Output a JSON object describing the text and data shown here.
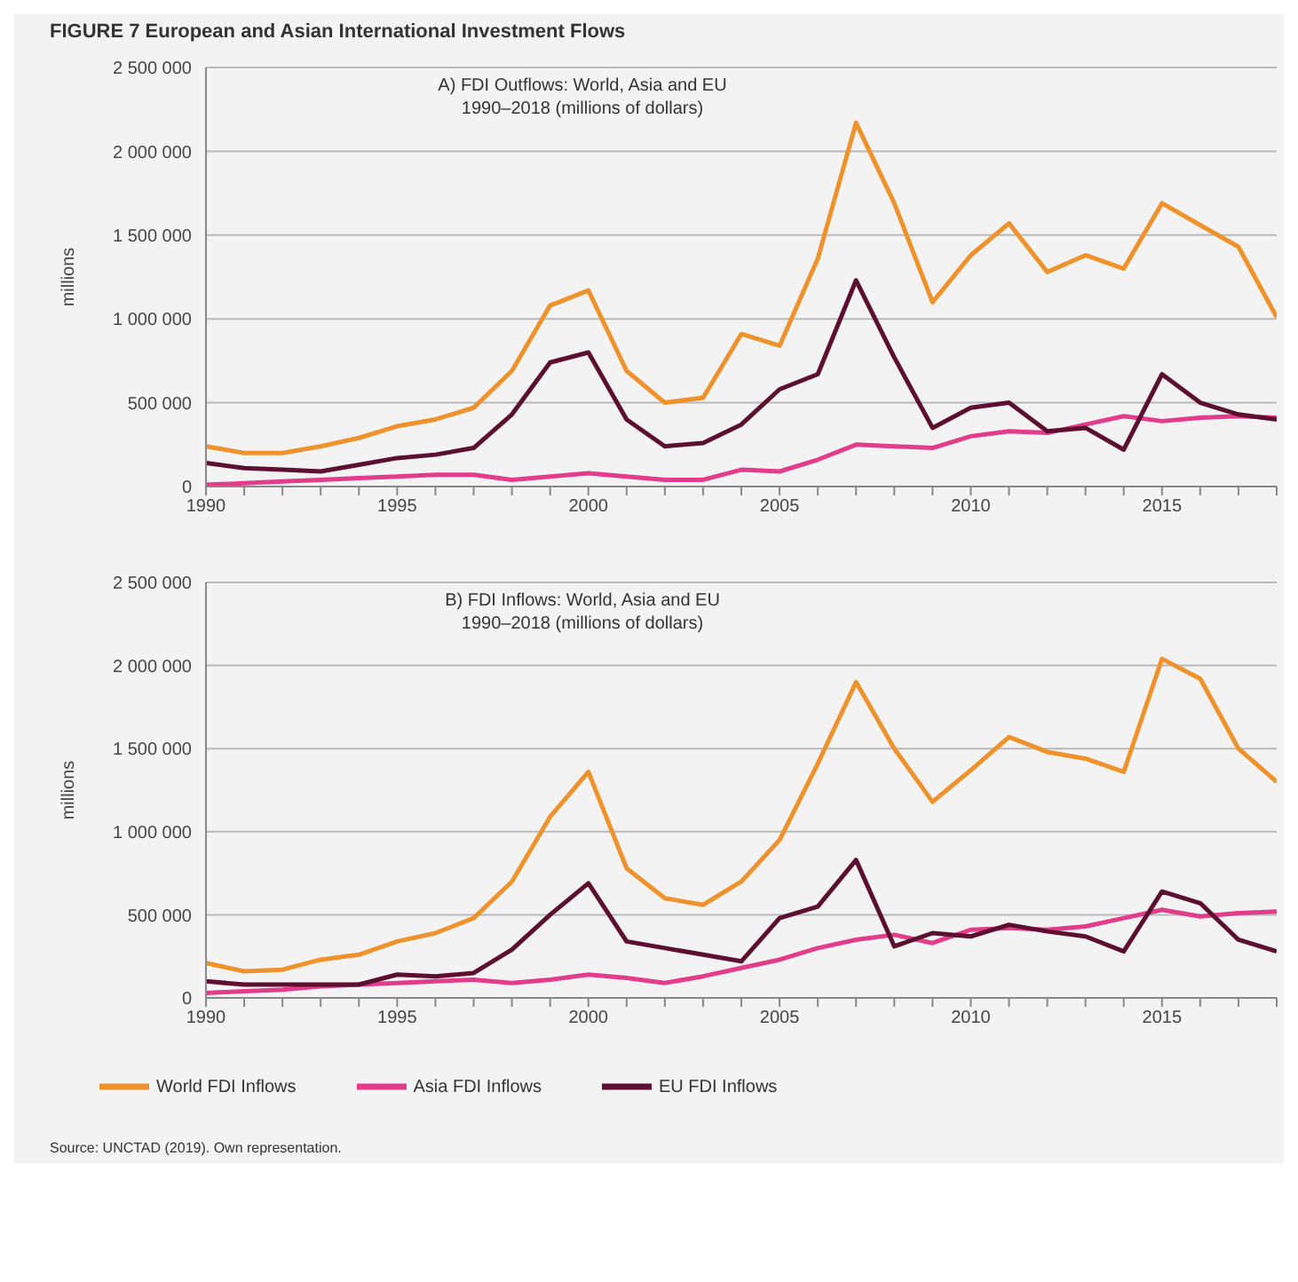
{
  "chart_data": [
    {
      "type": "line",
      "title": "FIGURE 7 European and Asian International Investment Flows",
      "subtitle": "A) FDI Outflows: World, Asia and EU\n1990–2018 (millions of dollars)",
      "ylabel": "millions",
      "x": [
        1990,
        1991,
        1992,
        1993,
        1994,
        1995,
        1996,
        1997,
        1998,
        1999,
        2000,
        2001,
        2002,
        2003,
        2004,
        2005,
        2006,
        2007,
        2008,
        2009,
        2010,
        2011,
        2012,
        2013,
        2014,
        2015,
        2016,
        2017,
        2018
      ],
      "series": [
        {
          "color": "#f0922c",
          "values": [
            240000,
            200000,
            200000,
            240000,
            290000,
            360000,
            400000,
            470000,
            690000,
            1080000,
            1170000,
            690000,
            500000,
            530000,
            910000,
            840000,
            1360000,
            2170000,
            1690000,
            1100000,
            1380000,
            1570000,
            1280000,
            1380000,
            1300000,
            1690000,
            1560000,
            1430000,
            1010000
          ]
        },
        {
          "color": "#e23c8a",
          "values": [
            10000,
            20000,
            30000,
            40000,
            50000,
            60000,
            70000,
            70000,
            40000,
            60000,
            80000,
            60000,
            40000,
            40000,
            100000,
            90000,
            160000,
            250000,
            240000,
            230000,
            300000,
            330000,
            320000,
            370000,
            420000,
            390000,
            410000,
            420000,
            410000
          ]
        },
        {
          "color": "#5c0f2e",
          "values": [
            140000,
            110000,
            100000,
            90000,
            130000,
            170000,
            190000,
            230000,
            430000,
            740000,
            800000,
            400000,
            240000,
            260000,
            370000,
            580000,
            670000,
            1230000,
            770000,
            350000,
            470000,
            500000,
            330000,
            350000,
            220000,
            670000,
            500000,
            430000,
            400000
          ]
        }
      ],
      "xlim": [
        1990,
        2018
      ],
      "xticks": [
        1990,
        {
          "value": 1991,
          "label": null
        },
        {
          "value": 1992,
          "label": null
        },
        {
          "value": 1993,
          "label": null
        },
        {
          "value": 1994,
          "label": null
        },
        1995,
        {
          "value": 1996,
          "label": null
        },
        {
          "value": 1997,
          "label": null
        },
        {
          "value": 1998,
          "label": null
        },
        {
          "value": 1999,
          "label": null
        },
        2000,
        {
          "value": 2001,
          "label": null
        },
        {
          "value": 2002,
          "label": null
        },
        {
          "value": 2003,
          "label": null
        },
        {
          "value": 2004,
          "label": null
        },
        2005,
        {
          "value": 2006,
          "label": null
        },
        {
          "value": 2007,
          "label": null
        },
        {
          "value": 2008,
          "label": null
        },
        {
          "value": 2009,
          "label": null
        },
        2010,
        {
          "value": 2011,
          "label": null
        },
        {
          "value": 2012,
          "label": null
        },
        {
          "value": 2013,
          "label": null
        },
        {
          "value": 2014,
          "label": null
        },
        2015,
        {
          "value": 2016,
          "label": null
        },
        {
          "value": 2017,
          "label": null
        },
        {
          "value": 2018,
          "label": null
        }
      ],
      "ylim": [
        0,
        2500000
      ],
      "yticks": [
        0,
        {
          "value": 500000,
          "label": "500 000"
        },
        {
          "value": 1000000,
          "label": "1 000 000"
        },
        {
          "value": 1500000,
          "label": "1 500 000"
        },
        {
          "value": 2000000,
          "label": "2 000 000"
        },
        {
          "value": 2500000,
          "label": "2 500 000"
        }
      ],
      "grid": "y",
      "legend": false
    },
    {
      "type": "line",
      "subtitle": "B) FDI Inflows: World, Asia and EU\n1990–2018 (millions of dollars)",
      "ylabel": "millions",
      "x": [
        1990,
        1991,
        1992,
        1993,
        1994,
        1995,
        1996,
        1997,
        1998,
        1999,
        2000,
        2001,
        2002,
        2003,
        2004,
        2005,
        2006,
        2007,
        2008,
        2009,
        2010,
        2011,
        2012,
        2013,
        2014,
        2015,
        2016,
        2017,
        2018
      ],
      "series": [
        {
          "name": "World FDI Inflows",
          "color": "#f0922c",
          "values": [
            210000,
            160000,
            170000,
            230000,
            260000,
            340000,
            390000,
            480000,
            700000,
            1090000,
            1360000,
            780000,
            600000,
            560000,
            700000,
            950000,
            1410000,
            1900000,
            1500000,
            1180000,
            1370000,
            1570000,
            1480000,
            1440000,
            1360000,
            2040000,
            1920000,
            1500000,
            1300000
          ]
        },
        {
          "name": "Asia FDI Inflows",
          "color": "#e23c8a",
          "values": [
            30000,
            40000,
            50000,
            70000,
            80000,
            90000,
            100000,
            110000,
            90000,
            110000,
            140000,
            120000,
            90000,
            130000,
            180000,
            230000,
            300000,
            350000,
            380000,
            330000,
            410000,
            420000,
            410000,
            430000,
            480000,
            530000,
            490000,
            510000,
            520000
          ]
        },
        {
          "name": "EU FDI Inflows",
          "color": "#5c0f2e",
          "values": [
            100000,
            80000,
            80000,
            80000,
            80000,
            140000,
            130000,
            150000,
            290000,
            500000,
            690000,
            340000,
            300000,
            260000,
            220000,
            480000,
            550000,
            830000,
            310000,
            390000,
            370000,
            440000,
            400000,
            370000,
            280000,
            640000,
            570000,
            350000,
            280000
          ]
        }
      ],
      "xlim": [
        1990,
        2018
      ],
      "xticks": [
        1990,
        {
          "value": 1991,
          "label": null
        },
        {
          "value": 1992,
          "label": null
        },
        {
          "value": 1993,
          "label": null
        },
        {
          "value": 1994,
          "label": null
        },
        1995,
        {
          "value": 1996,
          "label": null
        },
        {
          "value": 1997,
          "label": null
        },
        {
          "value": 1998,
          "label": null
        },
        {
          "value": 1999,
          "label": null
        },
        2000,
        {
          "value": 2001,
          "label": null
        },
        {
          "value": 2002,
          "label": null
        },
        {
          "value": 2003,
          "label": null
        },
        {
          "value": 2004,
          "label": null
        },
        2005,
        {
          "value": 2006,
          "label": null
        },
        {
          "value": 2007,
          "label": null
        },
        {
          "value": 2008,
          "label": null
        },
        {
          "value": 2009,
          "label": null
        },
        2010,
        {
          "value": 2011,
          "label": null
        },
        {
          "value": 2012,
          "label": null
        },
        {
          "value": 2013,
          "label": null
        },
        {
          "value": 2014,
          "label": null
        },
        2015,
        {
          "value": 2016,
          "label": null
        },
        {
          "value": 2017,
          "label": null
        },
        {
          "value": 2018,
          "label": null
        }
      ],
      "ylim": [
        0,
        2500000
      ],
      "yticks": [
        0,
        {
          "value": 500000,
          "label": "500 000"
        },
        {
          "value": 1000000,
          "label": "1 000 000"
        },
        {
          "value": 1500000,
          "label": "1 500 000"
        },
        {
          "value": 2000000,
          "label": "2 000 000"
        },
        {
          "value": 2500000,
          "label": "2 500 000"
        }
      ],
      "grid": "y",
      "legend": "bottom left",
      "annotations": [
        "Source: UNCTAD (2019). Own representation."
      ]
    }
  ]
}
